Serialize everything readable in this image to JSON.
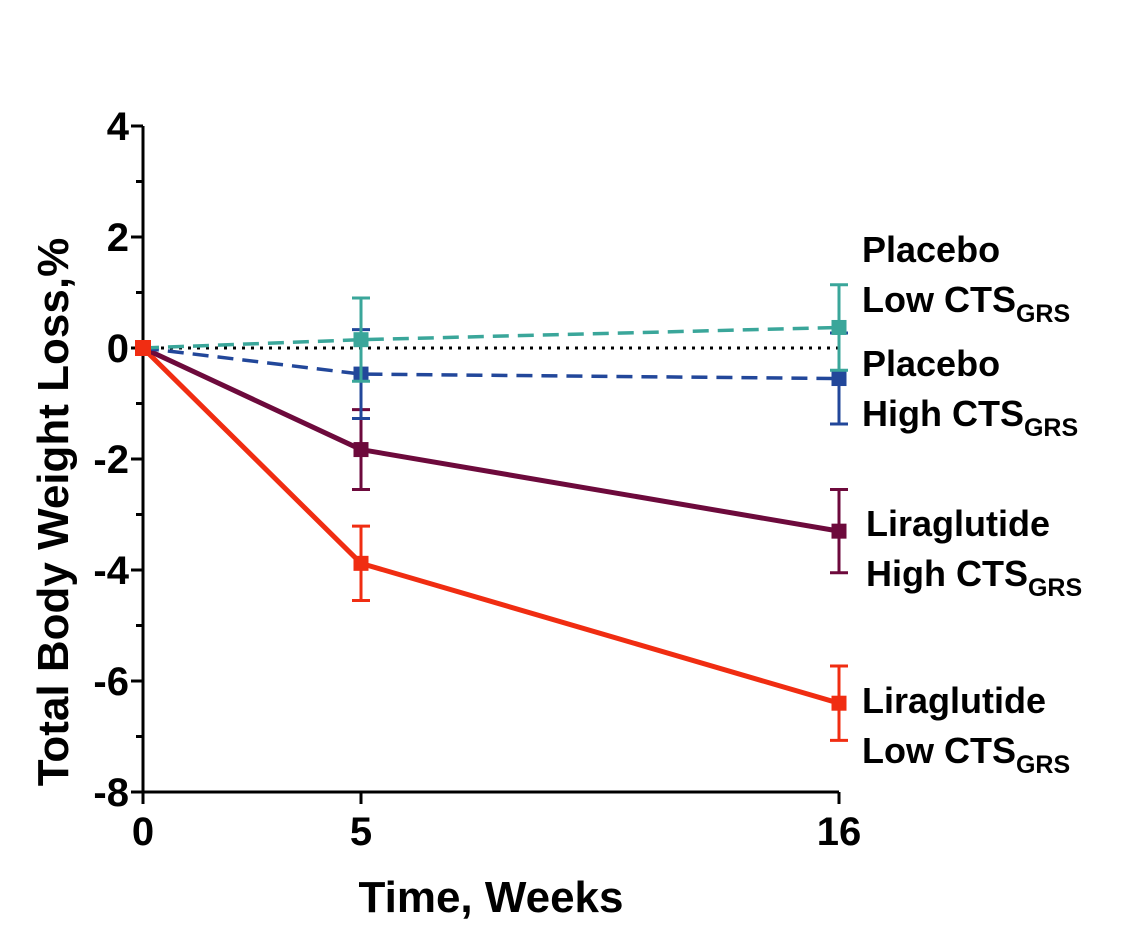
{
  "chart_data": {
    "type": "line",
    "title": "",
    "xlabel": "Time, Weeks",
    "ylabel": "Total Body Weight Loss,%",
    "x_ticks": [
      "0",
      "5",
      "16"
    ],
    "x": [
      0,
      5,
      16
    ],
    "ylim": [
      -8,
      4
    ],
    "y_ticks": [
      {
        "value": 4,
        "label": "4"
      },
      {
        "value": 2,
        "label": "2"
      },
      {
        "value": 0,
        "label": "0"
      },
      {
        "value": -2,
        "label": "-2"
      },
      {
        "value": -4,
        "label": "-4"
      },
      {
        "value": -6,
        "label": "-6"
      },
      {
        "value": -8,
        "label": "-8"
      }
    ],
    "reference_line": {
      "y": 0,
      "style": "dotted",
      "color": "#000000"
    },
    "series": [
      {
        "id": "placebo-low",
        "name": "Placebo Low CTSGRS",
        "label_line1": "Placebo",
        "label_line2": "Low CTS",
        "label_sub": "GRS",
        "color": "#3aa69a",
        "dashed": true,
        "values": [
          0,
          0.15,
          0.37
        ],
        "errors": [
          0,
          0.75,
          0.77
        ]
      },
      {
        "id": "placebo-high",
        "name": "Placebo High CTSGRS",
        "label_line1": "Placebo",
        "label_line2": "High CTS",
        "label_sub": "GRS",
        "color": "#22479a",
        "dashed": true,
        "values": [
          0,
          -0.47,
          -0.55
        ],
        "errors": [
          0,
          0.8,
          0.82
        ]
      },
      {
        "id": "lira-high",
        "name": "Liraglutide High CTSGRS",
        "label_line1": "Liraglutide",
        "label_line2": "High CTS",
        "label_sub": "GRS",
        "color": "#6d0a3c",
        "dashed": false,
        "values": [
          0,
          -1.83,
          -3.3
        ],
        "errors": [
          0,
          0.72,
          0.75
        ]
      },
      {
        "id": "lira-low",
        "name": "Liraglutide Low CTSGRS",
        "label_line1": "Liraglutide",
        "label_line2": "Low CTS",
        "label_sub": "GRS",
        "color": "#f02d12",
        "dashed": false,
        "values": [
          0,
          -3.88,
          -6.4
        ],
        "errors": [
          0,
          0.67,
          0.67
        ]
      }
    ]
  }
}
